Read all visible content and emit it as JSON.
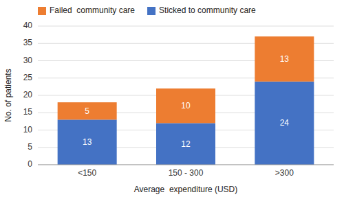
{
  "chart_data": {
    "type": "bar",
    "stacked": true,
    "categories": [
      "<150",
      "150 - 300",
      ">300"
    ],
    "series": [
      {
        "name": "Sticked to community care",
        "color": "#4472C4",
        "values": [
          13,
          12,
          24
        ]
      },
      {
        "name": "Failed  community care",
        "color": "#ED7D31",
        "values": [
          5,
          10,
          13
        ]
      }
    ],
    "xlabel": "Average  expenditure (USD)",
    "ylabel": "No. of patients",
    "ylim": [
      0,
      40
    ],
    "yticks": [
      0,
      5,
      10,
      15,
      20,
      25,
      30,
      35,
      40
    ],
    "grid": true,
    "data_labels": true,
    "legend": "top"
  }
}
